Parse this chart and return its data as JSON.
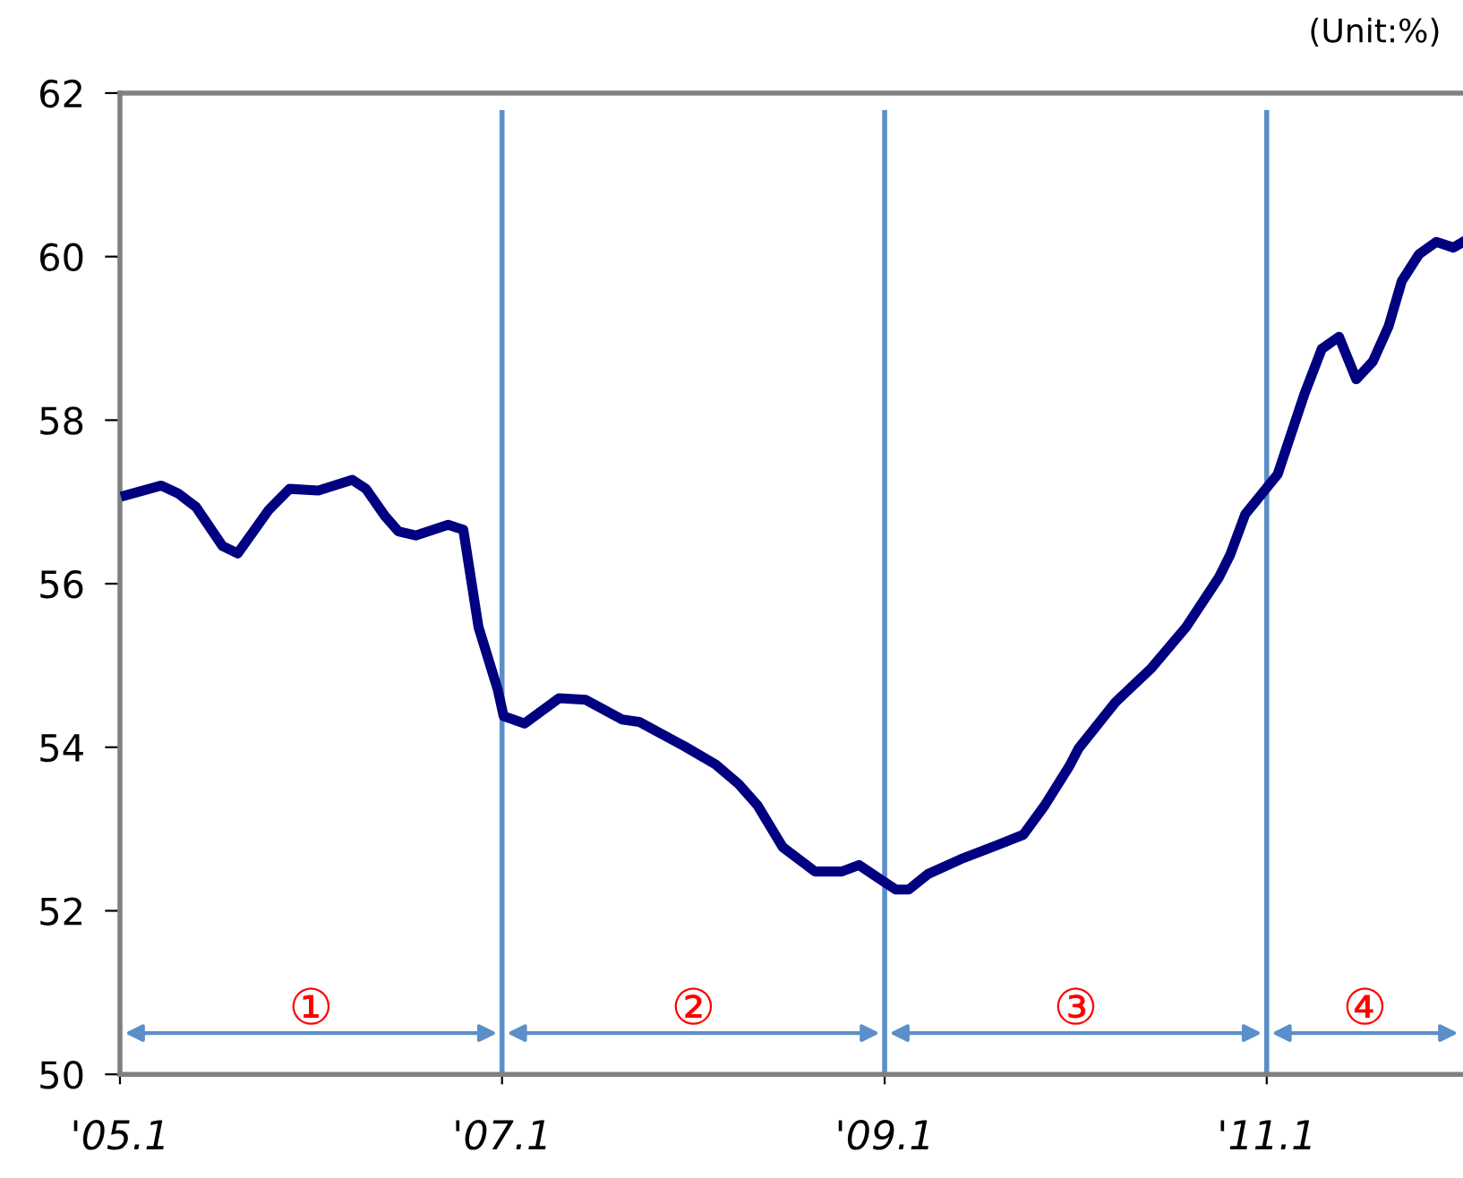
{
  "chart_data": {
    "type": "line",
    "x": [
      "2005-01-12",
      "2005-03-21",
      "2005-04-23",
      "2005-05-26",
      "2005-07-16",
      "2005-08-14",
      "2005-10-12",
      "2005-11-21",
      "2006-01-15",
      "2006-03-21",
      "2006-04-16",
      "2006-05-22",
      "2006-06-17",
      "2006-07-20",
      "2006-09-20",
      "2006-10-19",
      "2006-11-17",
      "2006-12-24",
      "2007-01-04",
      "2007-02-13",
      "2007-04-20",
      "2007-06-10",
      "2007-08-18",
      "2007-09-20",
      "2007-12-16",
      "2008-02-13",
      "2008-03-28",
      "2008-05-03",
      "2008-06-20",
      "2008-08-21",
      "2008-10-11",
      "2008-11-13",
      "2008-12-27",
      "2009-01-22",
      "2009-02-16",
      "2009-03-25",
      "2009-05-26",
      "2009-08-03",
      "2009-09-23",
      "2009-11-03",
      "2009-12-20",
      "2010-01-07",
      "2010-03-18",
      "2010-05-26",
      "2010-07-31",
      "2010-10-01",
      "2010-10-23",
      "2010-11-21",
      "2011-01-22",
      "2011-03-14",
      "2011-04-16",
      "2011-05-19",
      "2011-06-21",
      "2011-07-23",
      "2011-08-22",
      "2011-09-16",
      "2011-10-19",
      "2011-11-21",
      "2011-12-24",
      "2012-01-11"
    ],
    "series": [
      {
        "color": "#000080",
        "values": [
          57.08,
          57.2,
          57.1,
          56.94,
          56.46,
          56.37,
          56.9,
          57.16,
          57.14,
          57.27,
          57.16,
          56.83,
          56.64,
          56.59,
          56.72,
          56.66,
          55.47,
          54.7,
          54.38,
          54.29,
          54.6,
          54.58,
          54.34,
          54.31,
          54.01,
          53.79,
          53.55,
          53.29,
          52.78,
          52.48,
          52.48,
          52.56,
          52.37,
          52.26,
          52.26,
          52.45,
          52.63,
          52.8,
          52.93,
          53.29,
          53.77,
          53.99,
          54.55,
          54.97,
          55.47,
          56.07,
          56.35,
          56.85,
          57.34,
          58.32,
          58.87,
          59.02,
          58.5,
          58.72,
          59.15,
          59.7,
          60.03,
          60.18,
          60.11,
          60.18
        ]
      }
    ],
    "xlim": [
      "2005-01-01",
      "2012-01-11"
    ],
    "xticks": [
      {
        "value": "2005-01",
        "label": "'05.1"
      },
      {
        "value": "2007-01",
        "label": "'07.1"
      },
      {
        "value": "2009-01",
        "label": "'09.1"
      },
      {
        "value": "2011-01",
        "label": "'11.1"
      }
    ],
    "ylim": [
      50,
      62
    ],
    "yticks": [
      50,
      52,
      54,
      56,
      58,
      60,
      62
    ],
    "grid": false,
    "line_style": "solid",
    "marker": "none",
    "ref_lines": [
      {
        "axis": "x",
        "value": "2007-01",
        "color": "#5b8fc9"
      },
      {
        "axis": "x",
        "value": "2009-01",
        "color": "#5b8fc9"
      },
      {
        "axis": "x",
        "value": "2011-01",
        "color": "#5b8fc9"
      }
    ],
    "annotations": [
      "(Unit:%)",
      "①",
      "②",
      "③",
      "④"
    ]
  }
}
